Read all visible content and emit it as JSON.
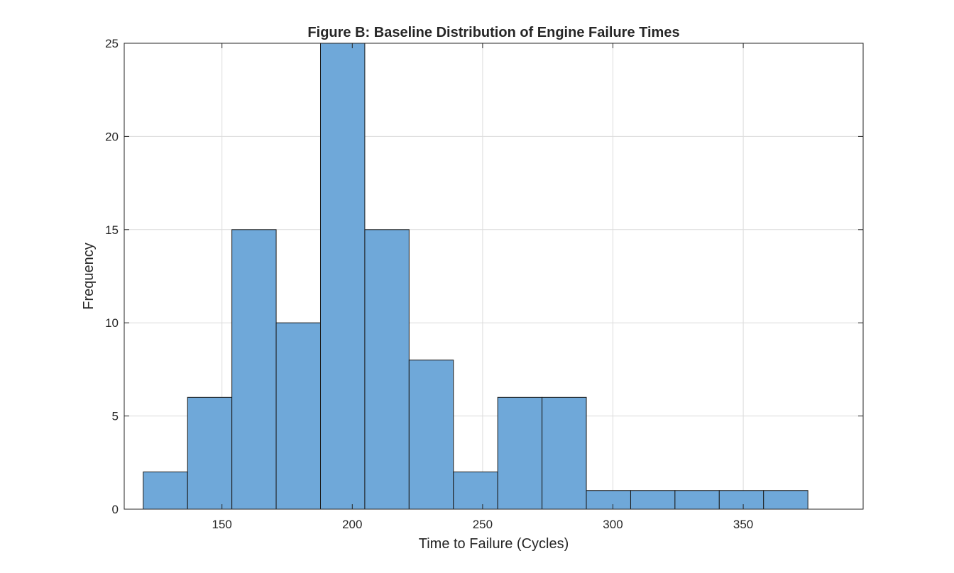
{
  "chart_data": {
    "type": "bar",
    "title": "Figure B: Baseline Distribution of Engine Failure Times",
    "xlabel": "Time to Failure (Cycles)",
    "ylabel": "Frequency",
    "xlim": [
      112.5,
      396
    ],
    "ylim": [
      0,
      25
    ],
    "xticks": [
      150,
      200,
      250,
      300,
      350
    ],
    "yticks": [
      0,
      5,
      10,
      15,
      20,
      25
    ],
    "grid": true,
    "bar_color": "#6fa8d9",
    "edge_color": "#1a1a1a",
    "bins": [
      {
        "start": 119.8,
        "end": 136.8,
        "count": 2
      },
      {
        "start": 136.8,
        "end": 153.8,
        "count": 6
      },
      {
        "start": 153.8,
        "end": 170.8,
        "count": 15
      },
      {
        "start": 170.8,
        "end": 187.8,
        "count": 10
      },
      {
        "start": 187.8,
        "end": 204.8,
        "count": 25
      },
      {
        "start": 204.8,
        "end": 221.8,
        "count": 15
      },
      {
        "start": 221.8,
        "end": 238.8,
        "count": 8
      },
      {
        "start": 238.8,
        "end": 255.8,
        "count": 2
      },
      {
        "start": 255.8,
        "end": 272.8,
        "count": 6
      },
      {
        "start": 272.8,
        "end": 289.8,
        "count": 6
      },
      {
        "start": 289.8,
        "end": 306.8,
        "count": 1
      },
      {
        "start": 306.8,
        "end": 323.8,
        "count": 1
      },
      {
        "start": 323.8,
        "end": 340.8,
        "count": 1
      },
      {
        "start": 340.8,
        "end": 357.8,
        "count": 1
      },
      {
        "start": 357.8,
        "end": 374.8,
        "count": 1
      }
    ]
  }
}
